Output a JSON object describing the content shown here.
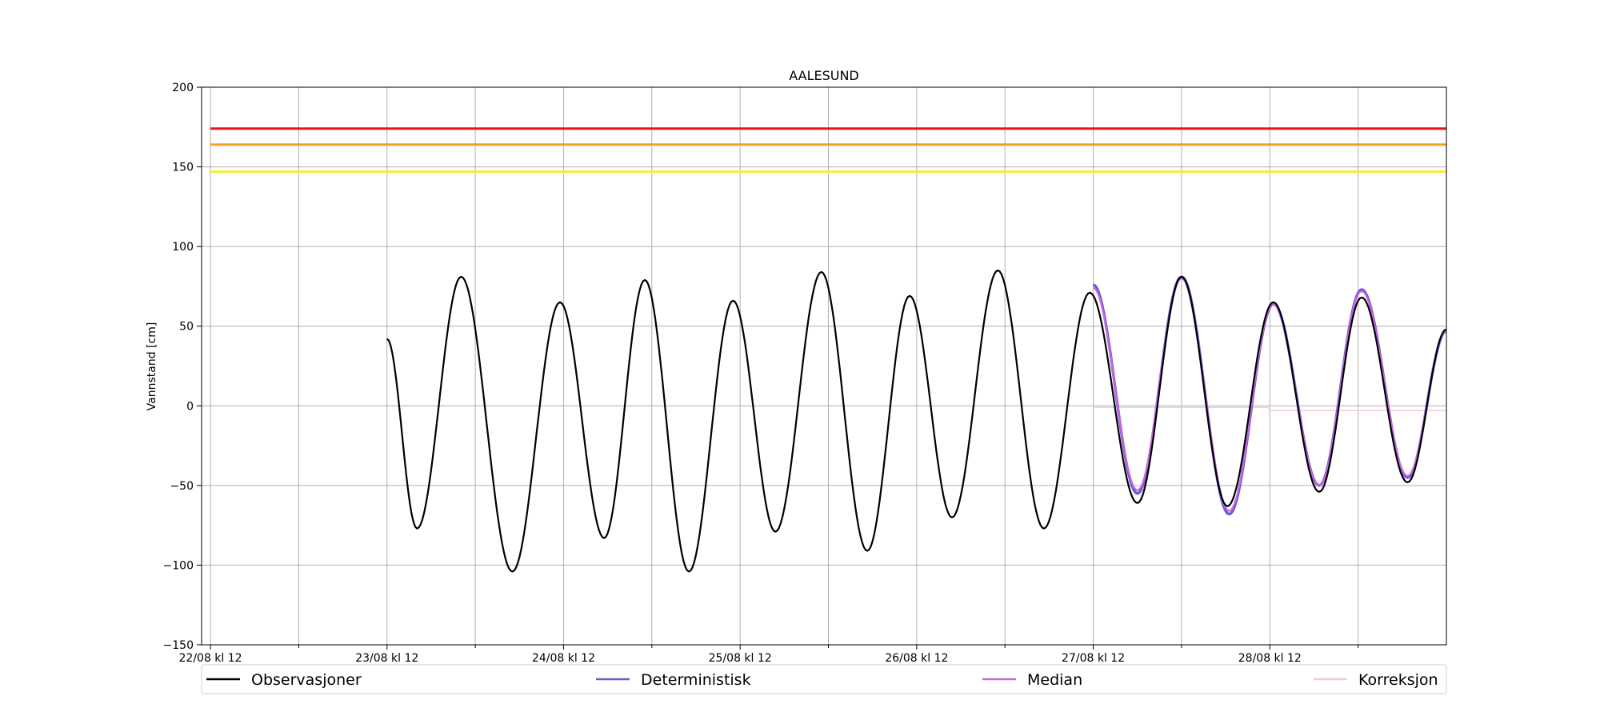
{
  "chart_data": {
    "type": "line",
    "title": "AALESUND",
    "xlabel": "",
    "ylabel": "Vannstand [cm]",
    "ylim": [
      -150,
      200
    ],
    "xlim": [
      -0.05,
      7.0
    ],
    "x_unit": "days from 22/08 kl 12",
    "yticks": [
      200,
      150,
      100,
      50,
      0,
      -50,
      -100,
      -150
    ],
    "ytick_labels": [
      "200",
      "150",
      "100",
      "50",
      "0",
      "−50",
      "−100",
      "−150"
    ],
    "xticks": [
      0,
      1,
      2,
      3,
      4,
      5,
      6
    ],
    "xtick_labels": [
      "22/08 kl 12",
      "23/08 kl 12",
      "24/08 kl 12",
      "25/08 kl 12",
      "26/08 kl 12",
      "27/08 kl 12",
      "28/08 kl 12"
    ],
    "xminor_ticks": [
      0.5,
      1.5,
      2.5,
      3.5,
      4.5,
      5.5,
      6.5
    ],
    "grid": true,
    "legend_position": "bottom",
    "thresholds": [
      {
        "value": 174,
        "color": "#e8141c"
      },
      {
        "value": 164,
        "color": "#f7a020"
      },
      {
        "value": 147,
        "color": "#f5ef30"
      }
    ],
    "series": [
      {
        "name": "Observasjoner",
        "color": "#000000",
        "x": [
          1.0,
          1.17,
          1.42,
          1.71,
          1.98,
          2.23,
          2.46,
          2.71,
          2.96,
          3.2,
          3.46,
          3.72,
          3.96,
          4.2,
          4.46,
          4.72,
          4.98,
          5.25,
          5.5,
          5.76,
          6.02,
          6.28,
          6.52,
          6.78,
          7.0
        ],
        "y": [
          42,
          -77,
          81,
          -104,
          65,
          -83,
          79,
          -104,
          66,
          -79,
          84,
          -91,
          69,
          -70,
          85,
          -77,
          71,
          -61,
          81,
          -63,
          65,
          -54,
          68,
          -48,
          48
        ]
      },
      {
        "name": "Deterministisk",
        "color": "#6a5ad8",
        "x": [
          5.0,
          5.25,
          5.5,
          5.77,
          6.02,
          6.28,
          6.52,
          6.78,
          7.0
        ],
        "y": [
          76,
          -55,
          81,
          -68,
          64,
          -50,
          73,
          -45,
          47
        ]
      },
      {
        "name": "Median",
        "color": "#cc66dd",
        "x": [
          5.0,
          5.25,
          5.5,
          5.77,
          6.02,
          6.28,
          6.52,
          6.78,
          7.0
        ],
        "y": [
          74,
          -53,
          80,
          -66,
          64,
          -50,
          72,
          -44,
          47
        ]
      },
      {
        "name": "Korreksjon",
        "color": "#f2c9cd",
        "x": [
          5.0,
          5.99,
          6.0,
          7.0
        ],
        "y": [
          -1,
          -1,
          -3,
          -3
        ]
      }
    ]
  }
}
